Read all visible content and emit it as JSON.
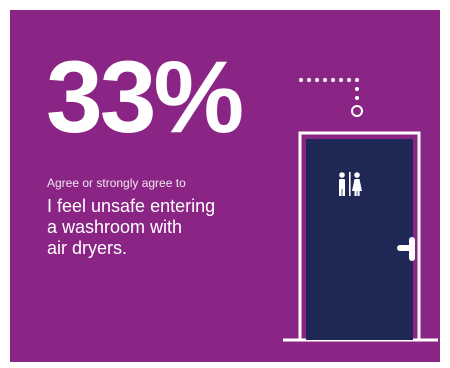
{
  "stat": {
    "value": "33%"
  },
  "caption": "Agree or strongly agree to",
  "statement": {
    "lines": [
      "I feel unsafe entering",
      "a washroom with",
      "air dryers."
    ]
  },
  "icons": {
    "door": "washroom-door-icon",
    "restroom_sign": "restroom-sign-icon",
    "handle": "door-handle-icon",
    "sensor": "hand-dryer-sensor-icon"
  },
  "colors": {
    "background": "#8b2585",
    "door": "#1f2855",
    "text": "#ffffff"
  }
}
